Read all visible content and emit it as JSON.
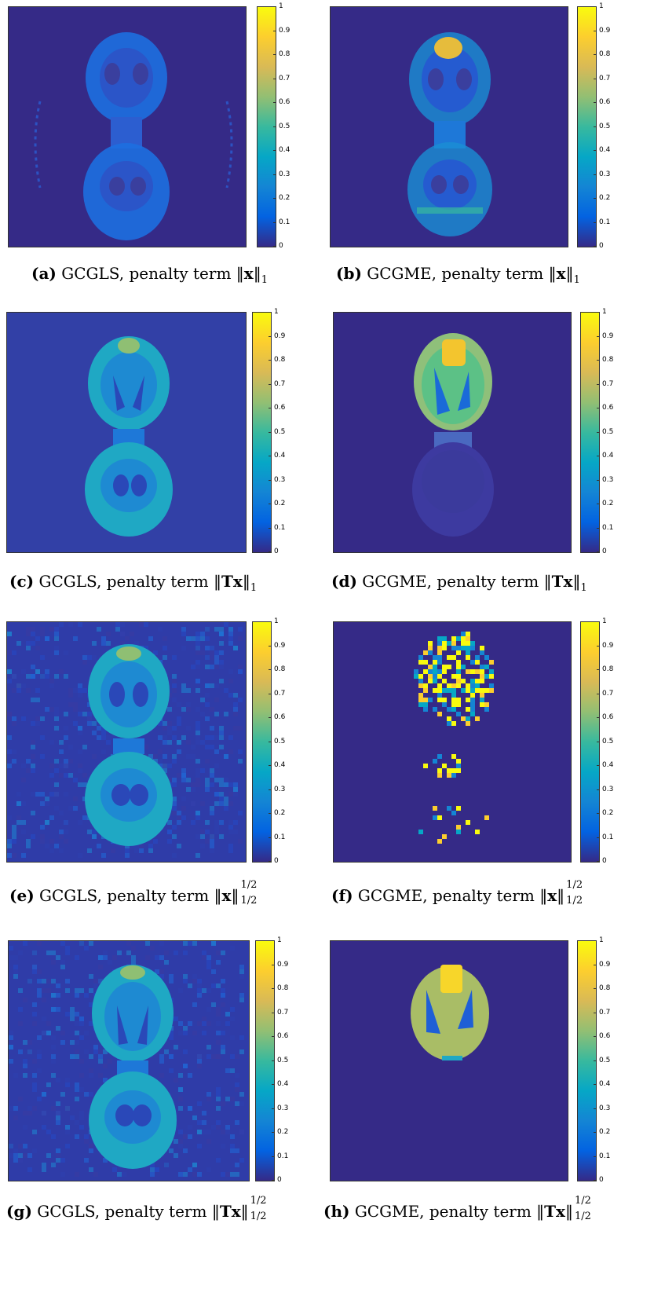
{
  "colormap": {
    "name": "parula",
    "stops": [
      "#352a87",
      "#0363e1",
      "#1485d4",
      "#06a7c6",
      "#38b99e",
      "#92bf73",
      "#d9ba56",
      "#fcce2e",
      "#f9fb0e"
    ],
    "background": "#352a87"
  },
  "colorbar_ticks": [
    "0",
    "0.1",
    "0.2",
    "0.3",
    "0.4",
    "0.5",
    "0.6",
    "0.7",
    "0.8",
    "0.9",
    "1"
  ],
  "panels": [
    {
      "id": "a",
      "label": "(a)",
      "method": "GCGLS, penalty term",
      "norm_label": "‖x‖",
      "norm_letter": "x",
      "exp": "",
      "sub": "1"
    },
    {
      "id": "b",
      "label": "(b)",
      "method": "GCGME, penalty term",
      "norm_label": "‖x‖",
      "norm_letter": "x",
      "exp": "",
      "sub": "1"
    },
    {
      "id": "c",
      "label": "(c)",
      "method": "GCGLS, penalty term",
      "norm_label": "‖Tx‖",
      "norm_letter": "Tx",
      "exp": "",
      "sub": "1"
    },
    {
      "id": "d",
      "label": "(d)",
      "method": "GCGME, penalty term",
      "norm_label": "‖Tx‖",
      "norm_letter": "Tx",
      "exp": "",
      "sub": "1"
    },
    {
      "id": "e",
      "label": "(e)",
      "method": "GCGLS, penalty term",
      "norm_label": "‖x‖",
      "norm_letter": "x",
      "exp": "1/2",
      "sub": "1/2"
    },
    {
      "id": "f",
      "label": "(f)",
      "method": "GCGME, penalty term",
      "norm_label": "‖x‖",
      "norm_letter": "x",
      "exp": "1/2",
      "sub": "1/2"
    },
    {
      "id": "g",
      "label": "(g)",
      "method": "GCGLS, penalty term",
      "norm_label": "‖Tx‖",
      "norm_letter": "Tx",
      "exp": "1/2",
      "sub": "1/2"
    },
    {
      "id": "h",
      "label": "(h)",
      "method": "GCGME, penalty term",
      "norm_label": "‖Tx‖",
      "norm_letter": "Tx",
      "exp": "1/2",
      "sub": "1/2"
    }
  ]
}
